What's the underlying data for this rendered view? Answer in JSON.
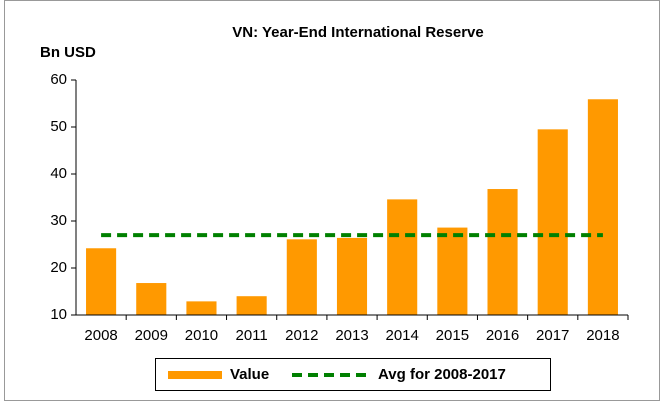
{
  "chart_data": {
    "type": "bar",
    "title": "VN: Year-End International Reserve",
    "y_label": "Bn USD",
    "categories": [
      "2008",
      "2009",
      "2010",
      "2011",
      "2012",
      "2013",
      "2014",
      "2015",
      "2016",
      "2017",
      "2018"
    ],
    "series": [
      {
        "name": "Value",
        "type": "bar",
        "color": "#ff9900",
        "values": [
          24.2,
          16.8,
          12.9,
          14.0,
          26.1,
          26.4,
          34.6,
          28.6,
          36.8,
          49.5,
          55.9
        ]
      },
      {
        "name": "Avg for 2008-2017",
        "type": "line",
        "dashed": true,
        "color": "#008000",
        "values": [
          27.0,
          27.0,
          27.0,
          27.0,
          27.0,
          27.0,
          27.0,
          27.0,
          27.0,
          27.0,
          27.0
        ]
      }
    ],
    "ylim": [
      10,
      60
    ],
    "yticks": [
      10,
      20,
      30,
      40,
      50,
      60
    ],
    "grid": false,
    "legend": "bottom"
  }
}
